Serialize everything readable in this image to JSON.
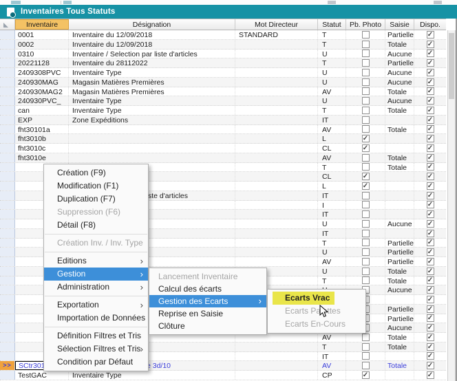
{
  "window": {
    "title": "Inventaires Tous Statuts"
  },
  "colors": {
    "teal": "#1692a5",
    "header_orange": "#f4c264",
    "menu_hl": "#3d8fd9",
    "yellow": "#e9e54a",
    "sel_text": "#3a3ddb",
    "sel_gutter": "#f0a23c",
    "marker_blue": "#2b5fc0"
  },
  "table": {
    "selected_marker": ">>",
    "checkmark": "✓",
    "headers": {
      "inventaire": "Inventaire",
      "designation": "Désignation",
      "mot_directeur": "Mot Directeur",
      "statut": "Statut",
      "pb_photo": "Pb. Photo",
      "saisie": "Saisie",
      "dispo": "Dispo."
    },
    "rows": [
      {
        "inv": "0001",
        "desig": "Inventaire du 12/09/2018",
        "mot": "STANDARD",
        "statut": "T",
        "pb": false,
        "saisie": "Partielle",
        "dispo": true
      },
      {
        "inv": "0002",
        "desig": "Inventaire du 12/09/2018",
        "mot": "",
        "statut": "T",
        "pb": false,
        "saisie": "Totale",
        "dispo": true
      },
      {
        "inv": "0310",
        "desig": "Inventaire / Selection par liste d'articles",
        "mot": "",
        "statut": "U",
        "pb": false,
        "saisie": "Aucune",
        "dispo": true
      },
      {
        "inv": "20221128",
        "desig": "Inventaire du 28112022",
        "mot": "",
        "statut": "T",
        "pb": false,
        "saisie": "Partielle",
        "dispo": true
      },
      {
        "inv": "2409308PVC",
        "desig": "Inventaire Type",
        "mot": "",
        "statut": "U",
        "pb": false,
        "saisie": "Aucune",
        "dispo": true
      },
      {
        "inv": "240930MAG",
        "desig": "Magasin Matières Premières",
        "mot": "",
        "statut": "U",
        "pb": false,
        "saisie": "Aucune",
        "dispo": true
      },
      {
        "inv": "240930MAG2",
        "desig": "Magasin Matières Premières",
        "mot": "",
        "statut": "AV",
        "pb": false,
        "saisie": "Totale",
        "dispo": true
      },
      {
        "inv": "240930PVC_",
        "desig": "Inventaire Type",
        "mot": "",
        "statut": "U",
        "pb": false,
        "saisie": "Aucune",
        "dispo": true
      },
      {
        "inv": "can",
        "desig": "Inventaire Type",
        "mot": "",
        "statut": "T",
        "pb": false,
        "saisie": "Totale",
        "dispo": true
      },
      {
        "inv": "EXP",
        "desig": "Zone Expéditions",
        "mot": "",
        "statut": "IT",
        "pb": false,
        "saisie": "",
        "dispo": true
      },
      {
        "inv": "fht30101a",
        "desig": "",
        "mot": "",
        "statut": "AV",
        "pb": false,
        "saisie": "Totale",
        "dispo": true
      },
      {
        "inv": "fht3010b",
        "desig": "",
        "mot": "",
        "statut": "L",
        "pb": true,
        "saisie": "",
        "dispo": true
      },
      {
        "inv": "fht3010c",
        "desig": "",
        "mot": "",
        "statut": "CL",
        "pb": true,
        "saisie": "",
        "dispo": true
      },
      {
        "inv": "fht3010e",
        "desig": "",
        "mot": "",
        "statut": "AV",
        "pb": false,
        "saisie": "Totale",
        "dispo": true
      },
      {
        "inv": "",
        "desig": "",
        "mot": "",
        "statut": "T",
        "pb": false,
        "saisie": "Totale",
        "dispo": true
      },
      {
        "inv": "",
        "desig": "",
        "mot": "",
        "statut": "CL",
        "pb": true,
        "saisie": "",
        "dispo": true
      },
      {
        "inv": "",
        "desig": "",
        "mot": "",
        "statut": "L",
        "pb": true,
        "saisie": "",
        "dispo": true
      },
      {
        "inv": "",
        "desig": "",
        "frag": "ste d'articles",
        "mot": "",
        "statut": "IT",
        "pb": false,
        "saisie": "",
        "dispo": true
      },
      {
        "inv": "",
        "desig": "",
        "mot": "",
        "statut": "I",
        "pb": false,
        "saisie": "",
        "dispo": true
      },
      {
        "inv": "",
        "desig": "",
        "mot": "",
        "statut": "IT",
        "pb": false,
        "saisie": "",
        "dispo": true
      },
      {
        "inv": "",
        "desig": "",
        "mot": "",
        "statut": "U",
        "pb": false,
        "saisie": "Aucune",
        "dispo": true
      },
      {
        "inv": "",
        "desig": "",
        "mot": "",
        "statut": "IT",
        "pb": false,
        "saisie": "",
        "dispo": true
      },
      {
        "inv": "",
        "desig": "",
        "mot": "",
        "statut": "T",
        "pb": false,
        "saisie": "Partielle",
        "dispo": true
      },
      {
        "inv": "",
        "desig": "",
        "mot": "",
        "statut": "U",
        "pb": false,
        "saisie": "Partielle",
        "dispo": true
      },
      {
        "inv": "",
        "desig": "",
        "mot": "",
        "statut": "AV",
        "pb": false,
        "saisie": "Partielle",
        "dispo": true
      },
      {
        "inv": "",
        "desig": "",
        "mot": "",
        "statut": "U",
        "pb": false,
        "saisie": "Totale",
        "dispo": true
      },
      {
        "inv": "",
        "desig": "",
        "mot": "",
        "statut": "T",
        "pb": false,
        "saisie": "Totale",
        "dispo": true
      },
      {
        "inv": "",
        "desig": "",
        "mot": "",
        "statut": "U",
        "pb": false,
        "saisie": "Aucune",
        "dispo": true
      },
      {
        "inv": "",
        "desig": "",
        "mot": "",
        "statut": "",
        "pb": false,
        "saisie": "",
        "dispo": true
      },
      {
        "inv": "",
        "desig": "",
        "mot": "",
        "statut": "",
        "pb": false,
        "saisie": "Partielle",
        "dispo": true
      },
      {
        "inv": "",
        "desig": "",
        "mot": "",
        "statut": "",
        "pb": false,
        "saisie": "Partielle",
        "dispo": true
      },
      {
        "inv": "",
        "desig": "",
        "mot": "",
        "statut": "",
        "pb": false,
        "saisie": "Aucune",
        "dispo": true
      },
      {
        "inv": "",
        "desig": "",
        "mot": "",
        "statut": "AV",
        "pb": false,
        "saisie": "Totale",
        "dispo": true
      },
      {
        "inv": "",
        "desig": "",
        "mot": "",
        "statut": "T",
        "pb": false,
        "saisie": "Totale",
        "dispo": true
      },
      {
        "inv": "",
        "desig": "",
        "mot": "",
        "statut": "IT",
        "pb": false,
        "saisie": "",
        "dispo": true
      },
      {
        "inv": "SCtr3010",
        "desig": "Section Controle Qualite 3d/10",
        "mot": "",
        "statut": "AV",
        "pb": false,
        "saisie": "Totale",
        "dispo": true,
        "selected": true,
        "blue": true,
        "focus": true
      },
      {
        "inv": "TestGAC",
        "desig": "Inventaire Type",
        "mot": "",
        "statut": "CP",
        "pb": true,
        "saisie": "",
        "dispo": true
      }
    ]
  },
  "context_menu": {
    "items": [
      {
        "label": "Création (F9)"
      },
      {
        "label": "Modification (F1)"
      },
      {
        "label": "Duplication (F7)"
      },
      {
        "label": "Suppression (F6)",
        "disabled": true
      },
      {
        "label": "Détail (F8)"
      },
      {
        "sep": true
      },
      {
        "label": "Création Inv. / Inv. Type",
        "disabled": true
      },
      {
        "sep": true
      },
      {
        "label": "Editions",
        "arrow": true
      },
      {
        "label": "Gestion",
        "arrow": true,
        "highlight": true
      },
      {
        "label": "Administration",
        "arrow": true
      },
      {
        "sep": true
      },
      {
        "label": "Exportation",
        "arrow": true
      },
      {
        "label": "Importation de Données"
      },
      {
        "sep": true
      },
      {
        "label": "Définition Filtres et Tris"
      },
      {
        "label": "Sélection Filtres et Tris",
        "arrow": true
      },
      {
        "label": "Condition par Défaut"
      }
    ]
  },
  "submenu": {
    "items": [
      {
        "label": "Lancement Inventaire",
        "disabled": true
      },
      {
        "label": "Calcul des écarts"
      },
      {
        "label": "Gestion des Ecarts",
        "arrow": true,
        "highlight": true
      },
      {
        "label": "Reprise en Saisie"
      },
      {
        "label": "Clôture"
      }
    ]
  },
  "subsubmenu": {
    "items": [
      {
        "label": "Ecarts Vrac",
        "yellow": true
      },
      {
        "label": "Ecarts Palettes",
        "disabled": true
      },
      {
        "label": "Ecarts En-Cours",
        "disabled": true
      }
    ]
  }
}
